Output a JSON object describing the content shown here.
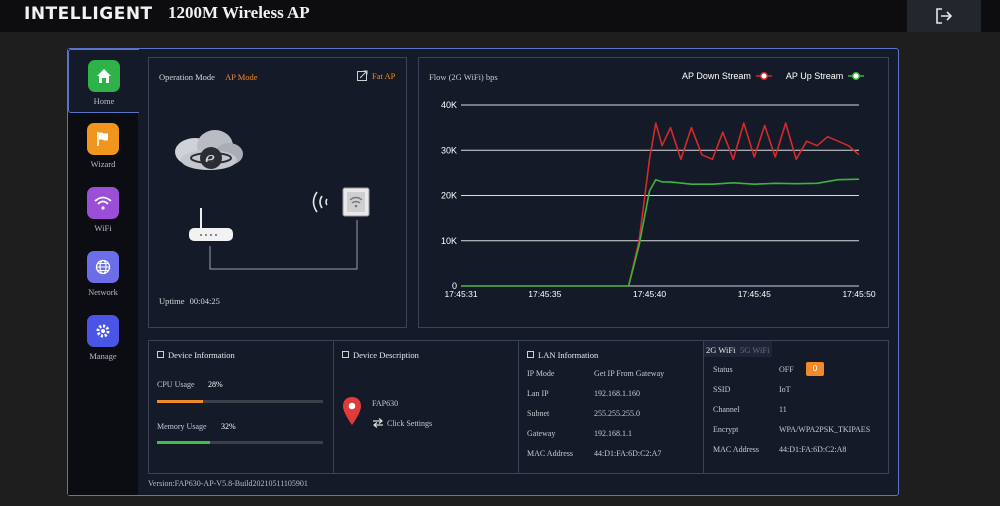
{
  "header": {
    "brand": "INTELLIGENT",
    "model": "1200M Wireless AP"
  },
  "sidebar": {
    "items": [
      {
        "label": "Home",
        "color": "#2fb24a"
      },
      {
        "label": "Wizard",
        "color": "#f0951e"
      },
      {
        "label": "WiFi",
        "color": "#9a4fd6"
      },
      {
        "label": "Network",
        "color": "#6c6ee8"
      },
      {
        "label": "Manage",
        "color": "#4a55e6"
      }
    ]
  },
  "topology": {
    "mode_label": "Operation Mode",
    "mode_value": "AP Mode",
    "fat_ap": "Fat AP",
    "uptime_label": "Uptime",
    "uptime_value": "00:04:25",
    "accent": "#f08a2a"
  },
  "flow": {
    "title": "Flow (2G WiFi) bps",
    "legend_down": "AP Down Stream",
    "legend_up": "AP Up Stream"
  },
  "chart_data": {
    "type": "line",
    "x": [
      "17:45:31",
      "17:45:32",
      "17:45:33",
      "17:45:34",
      "17:45:35",
      "17:45:36",
      "17:45:37",
      "17:45:38",
      "17:45:39",
      "17:45:40",
      "17:45:41",
      "17:45:42",
      "17:45:43",
      "17:45:44",
      "17:45:45",
      "17:45:46",
      "17:45:47",
      "17:45:48",
      "17:45:49",
      "17:45:50"
    ],
    "x_ticks": [
      "17:45:31",
      "17:45:35",
      "17:45:40",
      "17:45:45",
      "17:45:50"
    ],
    "y_ticks": [
      "0",
      "10K",
      "20K",
      "30K",
      "40K"
    ],
    "ylim": [
      0,
      40000
    ],
    "series": [
      {
        "name": "AP Down Stream",
        "color": "#d42a2a",
        "x": [
          31,
          32,
          33,
          34,
          35,
          36,
          37,
          38,
          39,
          39.5,
          40,
          40.3,
          40.6,
          41,
          41.5,
          42,
          42.5,
          43,
          43.5,
          44,
          44.5,
          45,
          45.5,
          46,
          46.5,
          47,
          47.5,
          48,
          48.5,
          49,
          49.5,
          50
        ],
        "values": [
          0,
          0,
          0,
          0,
          0,
          0,
          0,
          0,
          0,
          10000,
          28000,
          36000,
          31000,
          35000,
          28000,
          35000,
          29000,
          28000,
          34000,
          28000,
          36000,
          28500,
          35500,
          28500,
          36000,
          28000,
          32000,
          31000,
          33000,
          32000,
          31000,
          29000
        ]
      },
      {
        "name": "AP Up Stream",
        "color": "#3db33d",
        "x": [
          31,
          32,
          33,
          34,
          35,
          36,
          37,
          38,
          39,
          39.5,
          40,
          40.3,
          40.6,
          41,
          42,
          43,
          44,
          45,
          46,
          47,
          48,
          49,
          50
        ],
        "values": [
          0,
          0,
          0,
          0,
          0,
          0,
          0,
          0,
          0,
          9000,
          21000,
          23500,
          23000,
          23000,
          22500,
          22500,
          22800,
          22500,
          22700,
          22600,
          22700,
          23500,
          23600
        ]
      }
    ]
  },
  "device_info": {
    "title": "Device Information",
    "cpu_label": "CPU Usage",
    "cpu_value": "28%",
    "cpu_pct": 28,
    "cpu_color": "#f08a2a",
    "mem_label": "Memory Usage",
    "mem_value": "32%",
    "mem_pct": 32,
    "mem_color": "#38c24a"
  },
  "device_desc": {
    "title": "Device Description",
    "name": "FAP630",
    "click": "Click Settings"
  },
  "lan": {
    "title": "LAN Information",
    "rows": [
      {
        "k": "IP Mode",
        "v": "Get IP From Gateway"
      },
      {
        "k": "Lan IP",
        "v": "192.168.1.160"
      },
      {
        "k": "Subnet",
        "v": "255.255.255.0"
      },
      {
        "k": "Gateway",
        "v": "192.168.1.1"
      },
      {
        "k": "MAC Address",
        "v": "44:D1:FA:6D:C2:A7"
      }
    ]
  },
  "wifi": {
    "tab_2g": "2G WiFi",
    "tab_5g": "5G WiFi",
    "rows": [
      {
        "k": "Status",
        "v": "OFF"
      },
      {
        "k": "SSID",
        "v": "IoT"
      },
      {
        "k": "Channel",
        "v": "11"
      },
      {
        "k": "Encrypt",
        "v": "WPA/WPA2PSK_TKIPAES"
      },
      {
        "k": "MAC Address",
        "v": "44:D1:FA:6D:C2:A8"
      }
    ],
    "status_badge": "0"
  },
  "footer": {
    "version": "Version:FAP630-AP-V5.8-Build20210511105901"
  }
}
